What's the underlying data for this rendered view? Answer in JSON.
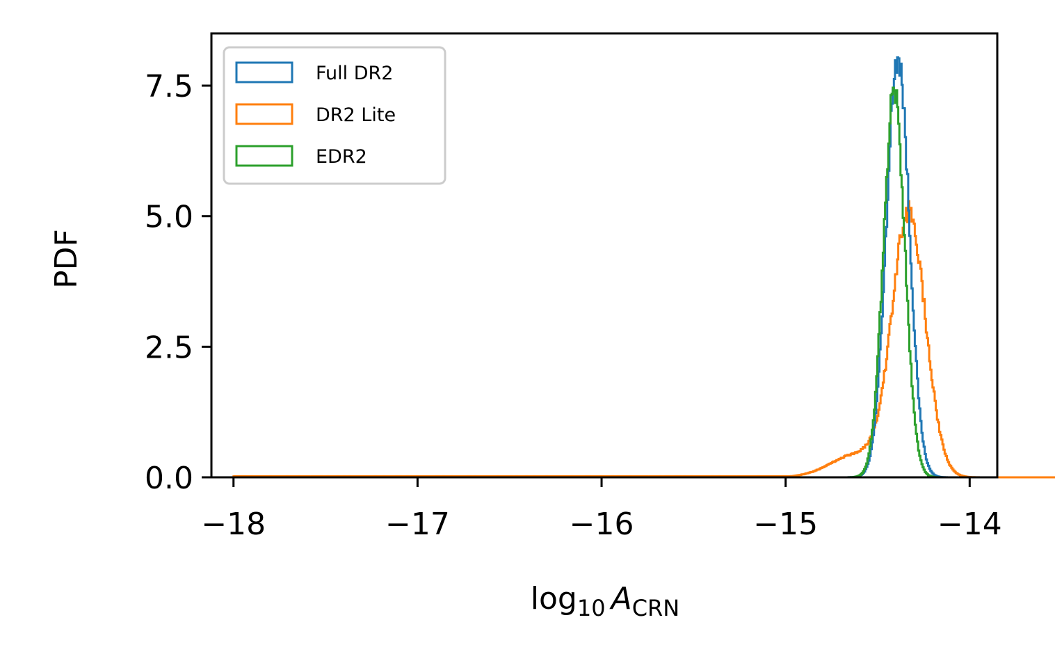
{
  "chart_data": {
    "type": "histogram",
    "xlabel": {
      "base": "log",
      "base_sub": "10",
      "var": "A",
      "var_sub": "CRN"
    },
    "ylabel": "PDF",
    "xlim": [
      -18.12,
      -13.85
    ],
    "ylim": [
      0,
      8.5
    ],
    "xticks": [
      -18,
      -17,
      -16,
      -15,
      -14
    ],
    "xtick_labels": [
      "−18",
      "−17",
      "−16",
      "−15",
      "−14"
    ],
    "yticks": [
      0,
      2.5,
      5,
      7.5
    ],
    "ytick_labels": [
      "0.0",
      "2.5",
      "5.0",
      "7.5"
    ],
    "legend_position": "upper-left",
    "histtype": "step",
    "series": [
      {
        "name": "Full DR2",
        "color": "#1f77b4",
        "curve": {
          "mean": -14.39,
          "sd": 0.062,
          "peak": 8.1,
          "tail_start": -15.0
        }
      },
      {
        "name": "DR2 Lite",
        "color": "#ff7f0e",
        "curve": {
          "mean": -14.33,
          "sd": 0.09,
          "peak": 5.0,
          "tail_start": -18.0,
          "left_tail_height": 0.02,
          "shoulder": {
            "mean": -14.6,
            "sd": 0.15,
            "amp": 0.45
          }
        }
      },
      {
        "name": "EDR2",
        "color": "#2ca02c",
        "curve": {
          "mean": -14.41,
          "sd": 0.058,
          "peak": 7.35,
          "tail_start": -15.0
        }
      }
    ]
  }
}
